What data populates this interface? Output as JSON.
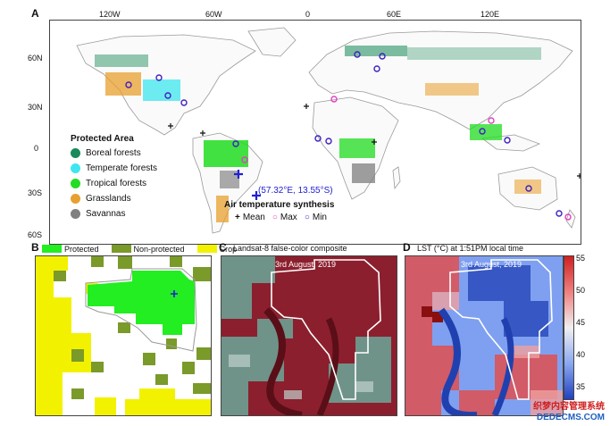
{
  "panel_a": {
    "letter": "A",
    "lon_ticks": [
      "120W",
      "60W",
      "0",
      "60E",
      "120E"
    ],
    "lat_ticks": [
      "60N",
      "30N",
      "0",
      "30S",
      "60S"
    ],
    "coordinate_label": "(57.32°E, 13.55°S)",
    "legend": {
      "title": "Protected Area",
      "items": [
        {
          "label": "Boreal forests",
          "color": "#1a8a5a"
        },
        {
          "label": "Temperate forests",
          "color": "#3ee6ef"
        },
        {
          "label": "Tropical forests",
          "color": "#22dd22"
        },
        {
          "label": "Grasslands",
          "color": "#e8a030"
        },
        {
          "label": "Savannas",
          "color": "#808080"
        }
      ]
    },
    "air_temp": {
      "title": "Air temperature synthesis",
      "items": [
        {
          "symbol": "+",
          "label": "Mean",
          "color": "#111111"
        },
        {
          "symbol": "○",
          "label": "Max",
          "color": "#e040c0"
        },
        {
          "symbol": "○",
          "label": "Min",
          "color": "#4020c0"
        }
      ]
    }
  },
  "panel_b": {
    "letter": "B",
    "legend": [
      {
        "label": "Protected",
        "color": "#22ee22"
      },
      {
        "label": "Non-protected",
        "color": "#7a9a2a"
      },
      {
        "label": "Crop",
        "color": "#f2f200"
      }
    ]
  },
  "panel_c": {
    "letter": "C",
    "title": "Landsat-8 false-color composite",
    "date": "3rd August, 2019"
  },
  "panel_d": {
    "letter": "D",
    "title": "LST (°C) at 1:51PM local time",
    "date": "3rd August, 2019",
    "colorbar_ticks": [
      "55",
      "50",
      "45",
      "40",
      "35"
    ]
  },
  "watermark": {
    "line1": "织梦内容管理系统",
    "line2": "DEDECMS.COM"
  }
}
